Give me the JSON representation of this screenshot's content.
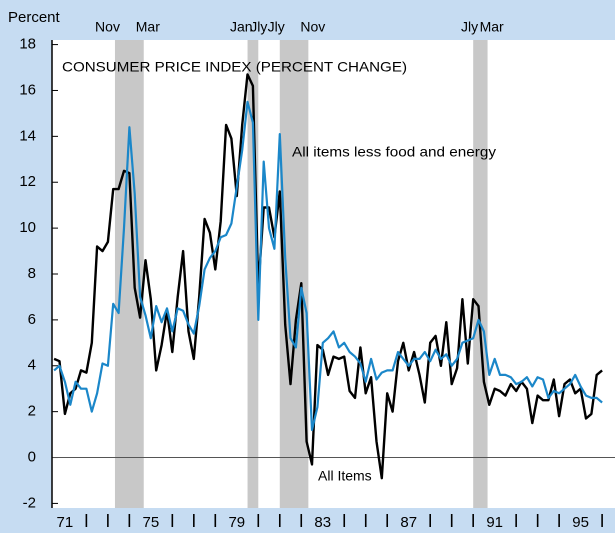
{
  "chart_data": {
    "type": "line",
    "title": "CONSUMER PRICE INDEX (PERCENT CHANGE)",
    "y_label": "Percent",
    "annotations": [
      "All items less food and energy",
      "All Items"
    ],
    "x": [
      71,
      71.25,
      71.5,
      71.75,
      72,
      72.25,
      72.5,
      72.75,
      73,
      73.25,
      73.5,
      73.75,
      74,
      74.25,
      74.5,
      74.75,
      75,
      75.25,
      75.5,
      75.75,
      76,
      76.25,
      76.5,
      76.75,
      77,
      77.25,
      77.5,
      77.75,
      78,
      78.25,
      78.5,
      78.75,
      79,
      79.25,
      79.5,
      79.75,
      80,
      80.25,
      80.5,
      80.75,
      81,
      81.25,
      81.5,
      81.75,
      82,
      82.25,
      82.5,
      82.75,
      83,
      83.25,
      83.5,
      83.75,
      84,
      84.25,
      84.5,
      84.75,
      85,
      85.25,
      85.5,
      85.75,
      86,
      86.25,
      86.5,
      86.75,
      87,
      87.25,
      87.5,
      87.75,
      88,
      88.25,
      88.5,
      88.75,
      89,
      89.25,
      89.5,
      89.75,
      90,
      90.25,
      90.5,
      90.75,
      91,
      91.25,
      91.5,
      91.75,
      92,
      92.25,
      92.5,
      92.75,
      93,
      93.25,
      93.5,
      93.75,
      94,
      94.25,
      94.5,
      94.75,
      95,
      95.25,
      95.5,
      95.75,
      96,
      96.25,
      96.5
    ],
    "series": [
      {
        "name": "All Items",
        "color": "#000000",
        "width": 2.4,
        "values": [
          4.3,
          4.2,
          1.9,
          2.8,
          3.0,
          3.8,
          3.7,
          5.0,
          9.2,
          9.0,
          9.4,
          11.7,
          11.7,
          12.5,
          12.4,
          7.4,
          6.1,
          8.6,
          6.9,
          3.8,
          4.9,
          6.4,
          4.6,
          7.0,
          9.0,
          5.5,
          4.3,
          7.0,
          10.4,
          9.8,
          8.2,
          10.3,
          14.5,
          13.9,
          11.4,
          14.5,
          16.7,
          16.2,
          7.4,
          10.9,
          10.9,
          9.6,
          11.6,
          5.8,
          3.2,
          6.0,
          7.6,
          0.7,
          -0.3,
          4.9,
          4.7,
          3.6,
          4.4,
          4.3,
          4.4,
          2.9,
          2.6,
          4.8,
          2.8,
          3.5,
          0.7,
          -0.9,
          2.8,
          2.0,
          4.2,
          5.0,
          3.8,
          4.6,
          3.6,
          2.4,
          5.0,
          5.3,
          4.0,
          5.9,
          3.2,
          3.9,
          6.9,
          4.1,
          6.9,
          6.6,
          3.3,
          2.3,
          3.0,
          2.9,
          2.7,
          3.2,
          2.9,
          3.3,
          3.0,
          1.5,
          2.7,
          2.5,
          2.5,
          3.4,
          1.8,
          3.2,
          3.4,
          2.8,
          3.0,
          1.7,
          1.9,
          3.6,
          3.8
        ]
      },
      {
        "name": "All items less food and energy",
        "color": "#1b87c9",
        "width": 2.2,
        "values": [
          3.8,
          4.0,
          3.3,
          2.3,
          3.3,
          3.0,
          3.0,
          2.0,
          2.8,
          4.1,
          4.0,
          6.7,
          6.3,
          10.0,
          14.4,
          11.5,
          7.0,
          6.2,
          5.2,
          6.6,
          5.9,
          6.5,
          5.5,
          6.5,
          6.4,
          5.8,
          5.4,
          6.6,
          8.2,
          8.7,
          9.0,
          9.6,
          9.7,
          10.2,
          11.8,
          13.4,
          15.5,
          14.6,
          6.0,
          12.9,
          10.0,
          9.1,
          14.1,
          8.7,
          5.2,
          4.8,
          7.4,
          6.3,
          1.2,
          2.2,
          5.0,
          5.2,
          5.5,
          4.8,
          5.0,
          4.6,
          4.4,
          4.1,
          3.3,
          4.3,
          3.4,
          3.7,
          3.8,
          3.8,
          4.6,
          4.3,
          4.0,
          4.3,
          4.3,
          4.6,
          4.2,
          4.7,
          4.3,
          4.5,
          4.0,
          4.3,
          5.0,
          5.1,
          5.2,
          6.0,
          5.5,
          3.6,
          4.3,
          3.6,
          3.6,
          3.5,
          3.2,
          3.3,
          3.5,
          3.1,
          3.5,
          3.4,
          2.6,
          2.9,
          2.8,
          3.0,
          3.2,
          3.6,
          3.1,
          2.7,
          2.6,
          2.6,
          2.4
        ]
      }
    ],
    "recessions": [
      {
        "start": 73.83,
        "end": 75.17,
        "start_label": "Nov",
        "end_label": "Mar"
      },
      {
        "start": 80.0,
        "end": 80.5,
        "start_label": "Jan",
        "end_label": "Jly"
      },
      {
        "start": 81.5,
        "end": 82.83,
        "start_label": "Jly",
        "end_label": "Nov"
      },
      {
        "start": 90.5,
        "end": 91.17,
        "start_label": "Jly",
        "end_label": "Mar"
      }
    ],
    "recession_color": "#c8c8c8",
    "xlim": [
      70.9,
      97.1
    ],
    "xticks": [
      71,
      75,
      79,
      83,
      87,
      91,
      95
    ],
    "xminor": [
      72,
      73,
      74,
      76,
      77,
      78,
      80,
      81,
      82,
      84,
      85,
      86,
      88,
      89,
      90,
      92,
      93,
      94,
      96
    ],
    "ylim": [
      -2.2,
      18.2
    ],
    "yticks": [
      -2,
      0,
      2,
      4,
      6,
      8,
      10,
      12,
      14,
      16,
      18
    ],
    "zero_line": true
  }
}
